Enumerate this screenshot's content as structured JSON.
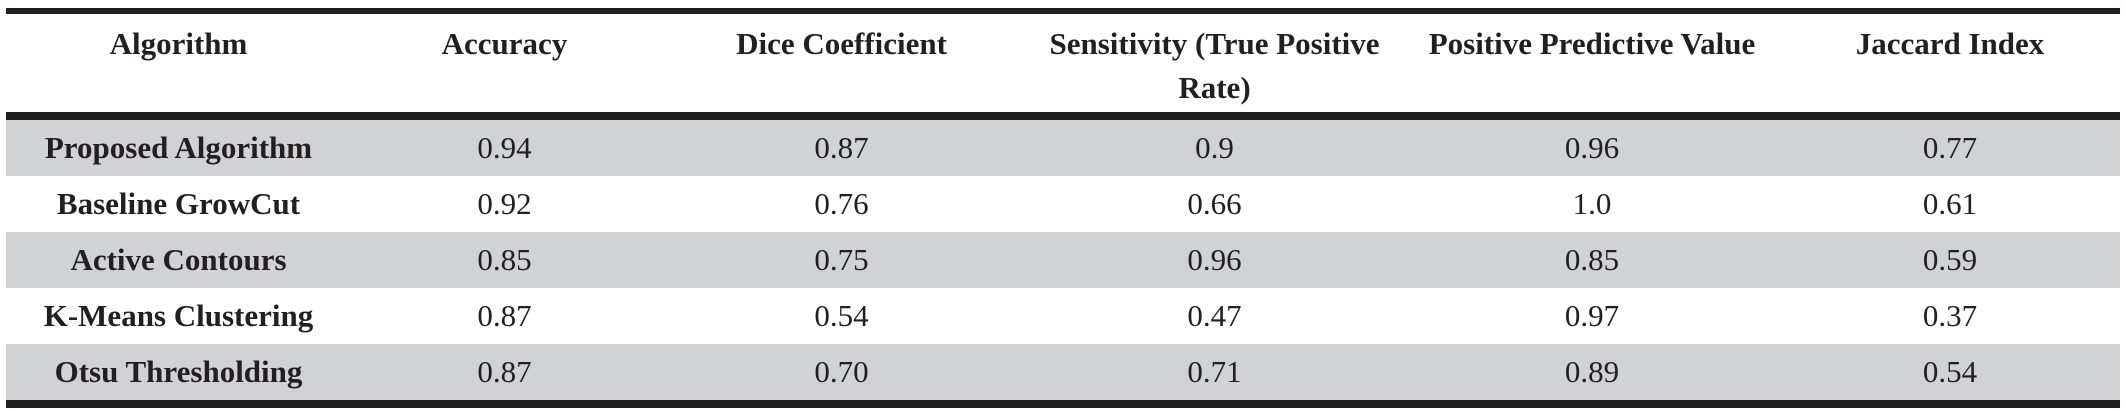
{
  "table": {
    "headers": [
      "Algorithm",
      "Accuracy",
      "Dice Coefficient",
      "Sensitivity (True Positive Rate)",
      "Positive Predictive Value",
      "Jaccard Index"
    ],
    "rows": [
      [
        "Proposed Algorithm",
        "0.94",
        "0.87",
        "0.9",
        "0.96",
        "0.77"
      ],
      [
        "Baseline GrowCut",
        "0.92",
        "0.76",
        "0.66",
        "1.0",
        "0.61"
      ],
      [
        "Active Contours",
        "0.85",
        "0.75",
        "0.96",
        "0.85",
        "0.59"
      ],
      [
        "K-Means Clustering",
        "0.87",
        "0.54",
        "0.47",
        "0.97",
        "0.37"
      ],
      [
        "Otsu Thresholding",
        "0.87",
        "0.70",
        "0.71",
        "0.89",
        "0.54"
      ]
    ]
  },
  "colors": {
    "rule": "#231f20",
    "shaded_row": "#d1d2d4",
    "text": "#231f20"
  }
}
